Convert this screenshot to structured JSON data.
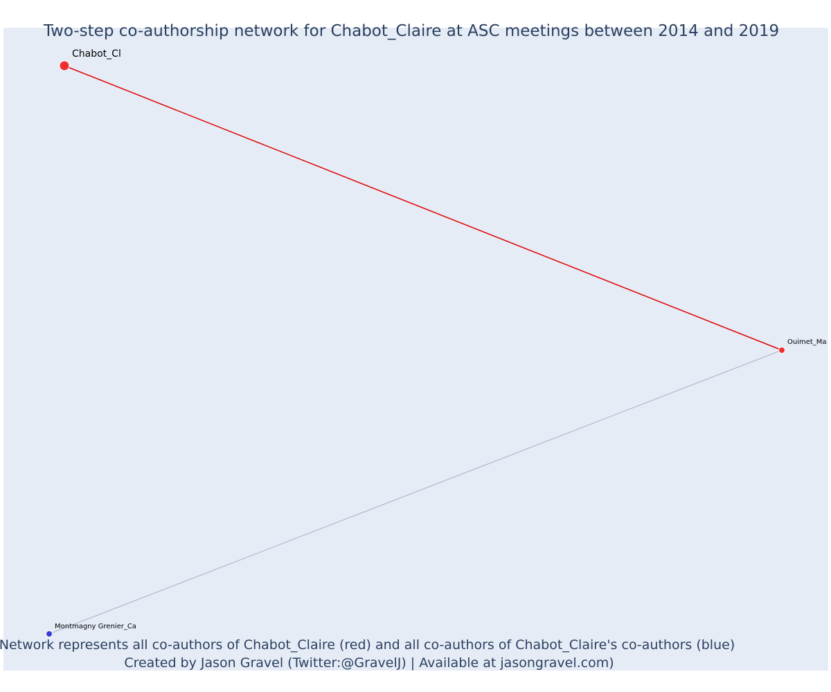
{
  "title": "Two-step co-authorship network for Chabot_Claire at ASC meetings between 2014 and 2019",
  "footer": {
    "line1": "Network represents all co-authors of Chabot_Claire (red) and all co-authors of Chabot_Claire's co-authors (blue)",
    "line2": "Created by Jason Gravel (Twitter:@GravelJ) | Available at jasongravel.com)"
  },
  "colors": {
    "background": "#e5ecf6",
    "red": "#ef2f2f",
    "blue": "#3a3ad8",
    "red_edge": "#e00000",
    "grey_edge": "#aab0c0",
    "text": "#2a3f5f"
  },
  "network": {
    "nodes": [
      {
        "id": "chabot",
        "label": "Chabot_Cl",
        "group": "red"
      },
      {
        "id": "ouimet",
        "label": "Ouimet_Ma",
        "group": "red"
      },
      {
        "id": "montmagny",
        "label": "Montmagny Grenier_Ca",
        "group": "blue"
      }
    ],
    "edges": [
      {
        "source": "chabot",
        "target": "ouimet",
        "type": "first-step"
      },
      {
        "source": "ouimet",
        "target": "montmagny",
        "type": "second-step"
      }
    ]
  }
}
